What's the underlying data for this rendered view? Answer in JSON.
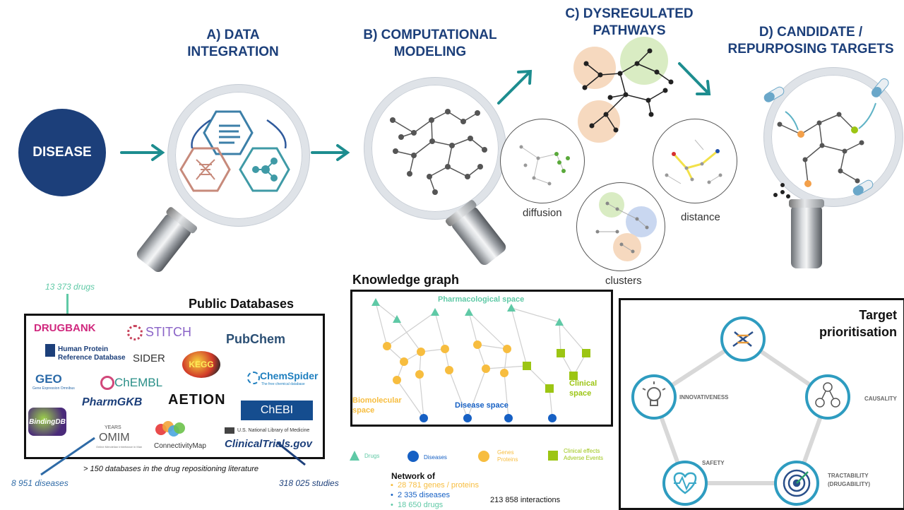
{
  "disease_label": "DISEASE",
  "stages": {
    "a": "A) DATA INTEGRATION",
    "b": "B) COMPUTATIONAL MODELING",
    "c": "C) DYSREGULATED PATHWAYS",
    "d": "D) CANDIDATE / REPURPOSING TARGETS"
  },
  "pathway_methods": {
    "diffusion": "diffusion",
    "clusters": "clusters",
    "distance": "distance"
  },
  "public_databases": {
    "title": "Public Databases",
    "drugs_count": "13 373 drugs",
    "diseases_count": "8 951 diseases",
    "studies_count": "318 025 studies",
    "footnote": "> 150 databases in the drug repositioning literature",
    "logos": {
      "drugbank": "DRUGBANK",
      "stitch": "STITCH",
      "pubchem": "PubChem",
      "hprd_line1": "Human Protein",
      "hprd_line2": "Reference Database",
      "sider": "SIDER",
      "kegg": "KEGG",
      "geo": "GEO",
      "geo_sub": "Gene Expression Omnibus",
      "chembl": "ChEMBL",
      "chemspider": "ChemSpider",
      "chemspider_sub": "The free chemical database",
      "pharmgkb": "PharmGKB",
      "aetion": "AETION",
      "chebi": "ChEBI",
      "bindingdb": "BindingDB",
      "omim_years": "YEARS",
      "omim": "OMIM",
      "omim_sub": "Online Mendelian Inheritance in Man",
      "cmap": "ConnectivityMap",
      "nlm": "U.S. National Library of Medicine",
      "ctgov": "ClinicalTrials.gov"
    }
  },
  "knowledge_graph": {
    "title": "Knowledge graph",
    "pharmacological_space": "Pharmacological space",
    "biomolecular_space": "Biomolecular space",
    "disease_space": "Disease space",
    "clinical_space": "Clinical space",
    "legend": {
      "drugs": "Drugs",
      "diseases": "Diseases",
      "genes": "Genes Proteins",
      "clinical": "Clinical effects Adverse Events"
    },
    "network_title": "Network of",
    "network_items": [
      "28 781 genes / proteins",
      "2 335 diseases",
      "18 650 drugs"
    ],
    "interactions": "213 858 interactions"
  },
  "target_prioritisation": {
    "title": "Target prioritisation",
    "innovativeness": "INNOVATIVENESS",
    "causality": "CAUSALITY",
    "safety": "SAFETY",
    "tractability": "TRACTABILITY (DRUGABILITY)"
  },
  "colors": {
    "navy": "#1c3f7a",
    "teal": "#1d8d8f",
    "drug": "#5fc9a6",
    "gene": "#f7bd3f",
    "disease": "#1660c4",
    "clinical": "#9cc513"
  }
}
